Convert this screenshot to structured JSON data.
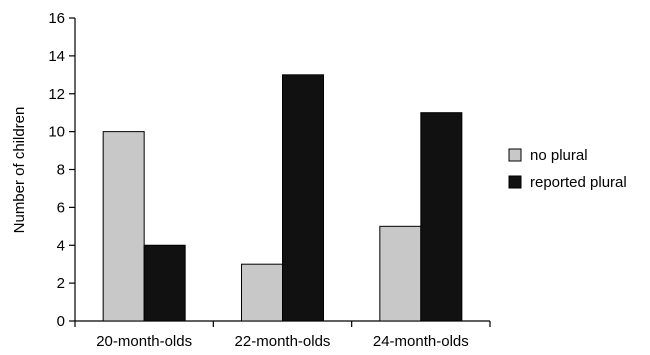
{
  "chart_data": {
    "type": "bar",
    "title": "",
    "xlabel": "",
    "ylabel": "Number of children",
    "ylim": [
      0,
      16
    ],
    "yticks": [
      0,
      2,
      4,
      6,
      8,
      10,
      12,
      14,
      16
    ],
    "categories": [
      "20-month-olds",
      "22-month-olds",
      "24-month-olds"
    ],
    "series": [
      {
        "name": "no plural",
        "color": "#c8c8c8",
        "values": [
          10,
          3,
          5
        ]
      },
      {
        "name": "reported plural",
        "color": "#111111",
        "values": [
          4,
          13,
          11
        ]
      }
    ],
    "grid": false,
    "legend": "right"
  }
}
